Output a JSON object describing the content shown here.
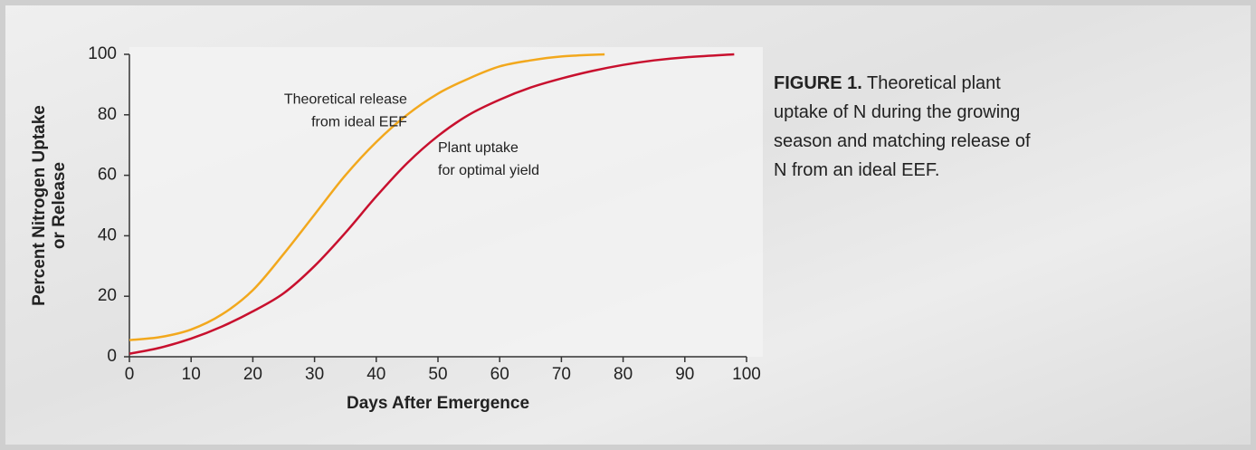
{
  "chart_data": {
    "type": "line",
    "xlabel": "Days After Emergence",
    "ylabel": [
      "Percent Nitrogen Uptake",
      "or Release"
    ],
    "xlim": [
      0,
      100
    ],
    "xticks": [
      0,
      10,
      20,
      30,
      40,
      50,
      60,
      70,
      80,
      90,
      100
    ],
    "ylim": [
      0,
      100
    ],
    "yticks": [
      0,
      20,
      40,
      60,
      80,
      100
    ],
    "grid": false,
    "series": [
      {
        "color": "#f2a81d",
        "x": [
          0,
          5,
          10,
          15,
          20,
          25,
          30,
          35,
          40,
          45,
          50,
          55,
          60,
          65,
          70,
          77
        ],
        "values": [
          5.5,
          6.5,
          9,
          14,
          22,
          34,
          47,
          60,
          71,
          80,
          87,
          92,
          96,
          98,
          99.3,
          100
        ]
      },
      {
        "color": "#c8102e",
        "x": [
          0,
          5,
          10,
          15,
          20,
          25,
          30,
          35,
          40,
          45,
          50,
          55,
          60,
          65,
          70,
          75,
          80,
          85,
          90,
          98
        ],
        "values": [
          1,
          3,
          6,
          10,
          15,
          21,
          30,
          41,
          53,
          64,
          73,
          80,
          85,
          89,
          92,
          94.5,
          96.5,
          98,
          99,
          100
        ]
      }
    ],
    "annotations": [
      {
        "lines": [
          "Theoretical release",
          "from ideal EEF"
        ],
        "x": 45,
        "y": 85,
        "anchor": "end"
      },
      {
        "lines": [
          "Plant uptake",
          "for optimal yield"
        ],
        "x": 50,
        "y": 69,
        "anchor": "start"
      }
    ],
    "caption": {
      "label": "FIGURE 1.",
      "text": "Theoretical plant uptake of N during the growing season and matching release of N from an ideal EEF."
    }
  }
}
